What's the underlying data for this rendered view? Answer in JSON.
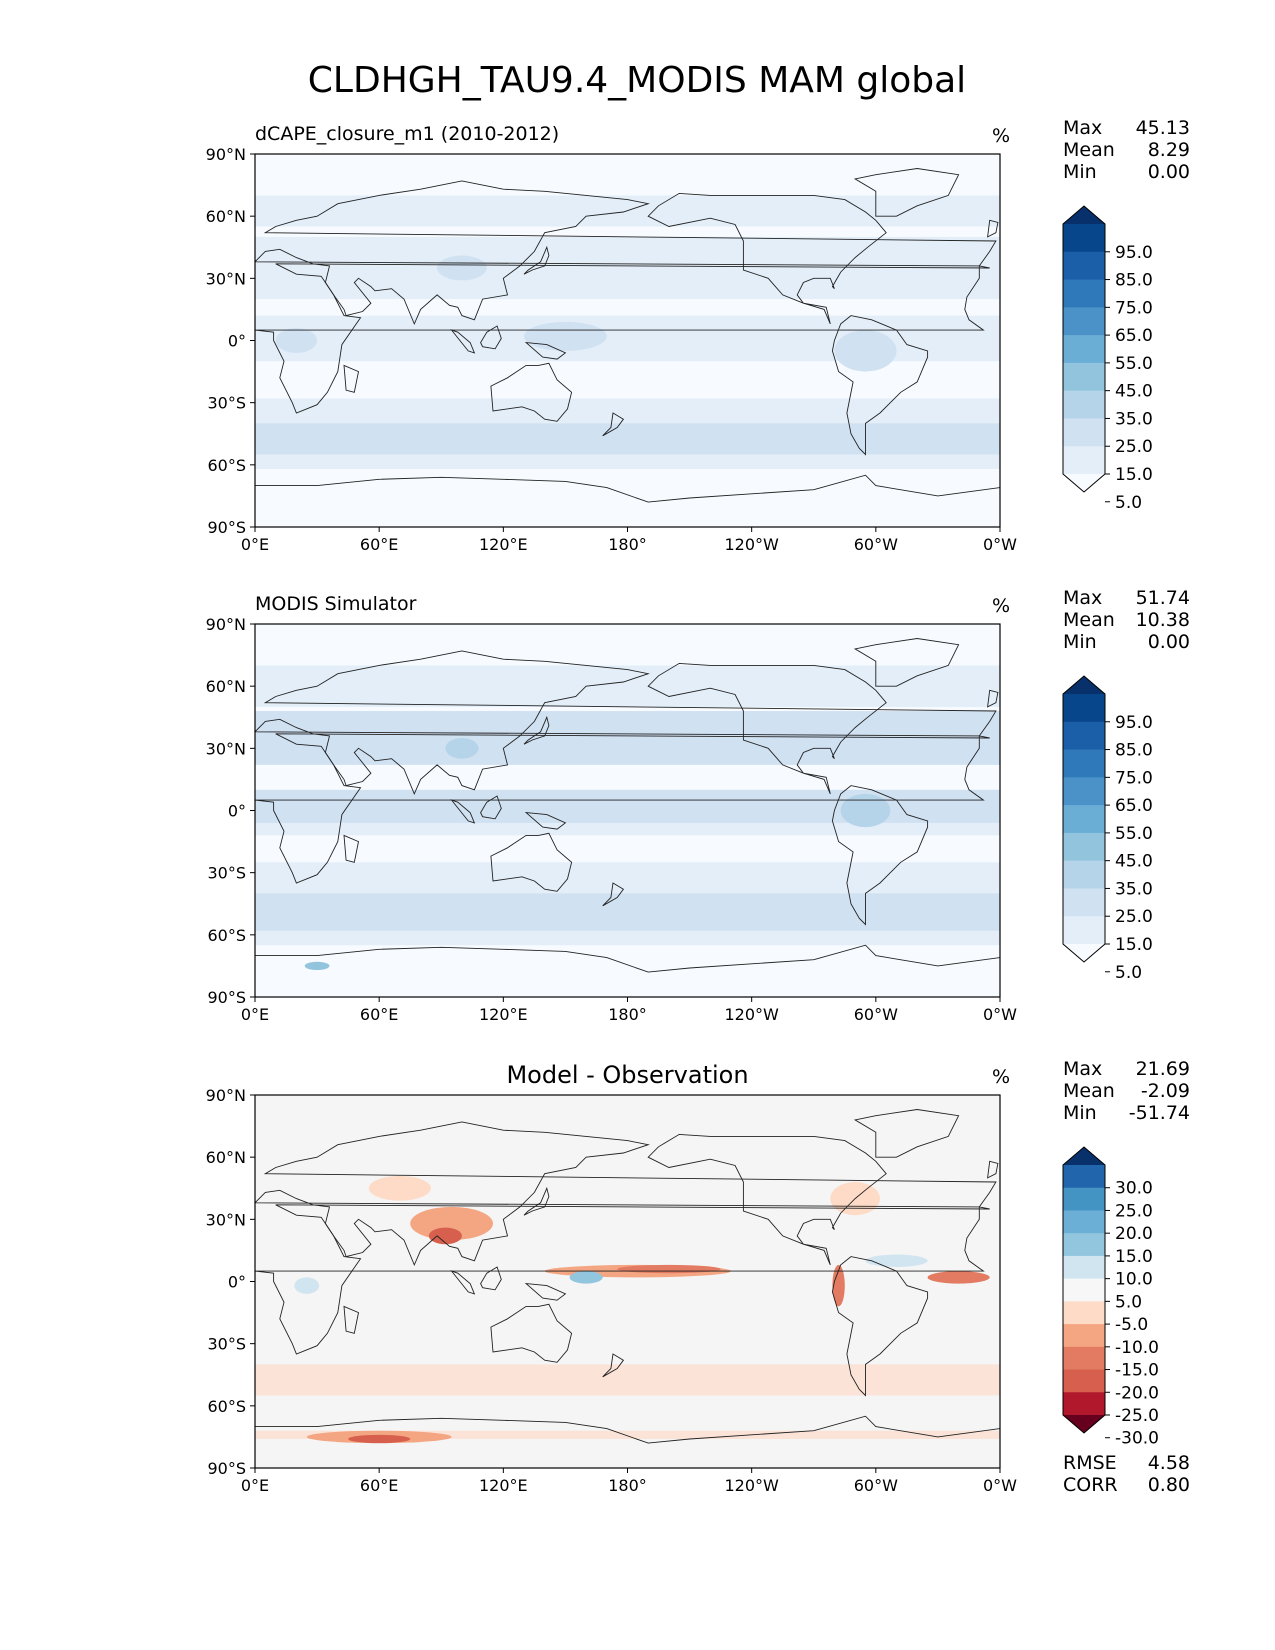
{
  "figure_title": "CLDHGH_TAU9.4_MODIS MAM global",
  "lon_ticks": [
    "0°E",
    "60°E",
    "120°E",
    "180°",
    "120°W",
    "60°W",
    "0°W"
  ],
  "lat_ticks": [
    "90°N",
    "60°N",
    "30°N",
    "0°",
    "30°S",
    "60°S",
    "90°S"
  ],
  "panels": [
    {
      "title_left": "dCAPE_closure_m1 (2010-2012)",
      "title_center": "",
      "units": "%",
      "stats": [
        {
          "label": "Max",
          "value": "45.13"
        },
        {
          "label": "Mean",
          "value": "8.29"
        },
        {
          "label": "Min",
          "value": "0.00"
        }
      ],
      "colorbar": {
        "labels": [
          "95.0",
          "85.0",
          "75.0",
          "65.0",
          "55.0",
          "45.0",
          "35.0",
          "25.0",
          "15.0",
          "5.0"
        ],
        "colors": [
          "#08306b",
          "#08468c",
          "#1a5fa8",
          "#2f78b9",
          "#4a92c7",
          "#6aaed6",
          "#92c4de",
          "#b5d4e9",
          "#d0e1f2",
          "#e3eef9",
          "#f7fbff"
        ]
      },
      "map": {
        "background": "#f7fbff",
        "bands": [
          {
            "lat_range": [
              55,
              70
            ],
            "color": "#e3eef9"
          },
          {
            "lat_range": [
              20,
              50
            ],
            "color": "#e3eef9"
          },
          {
            "lat_range": [
              -10,
              12
            ],
            "color": "#e3eef9"
          },
          {
            "lat_range": [
              -62,
              -28
            ],
            "color": "#e3eef9"
          },
          {
            "lat_range": [
              -55,
              -40
            ],
            "color": "#d0e1f2"
          }
        ],
        "blobs": [
          {
            "lon": 150,
            "lat": 2,
            "rlon": 20,
            "rlat": 7,
            "color": "#d0e1f2"
          },
          {
            "lon": 295,
            "lat": -5,
            "rlon": 15,
            "rlat": 10,
            "color": "#d0e1f2"
          },
          {
            "lon": 20,
            "lat": 0,
            "rlon": 10,
            "rlat": 6,
            "color": "#d0e1f2"
          },
          {
            "lon": 100,
            "lat": 35,
            "rlon": 12,
            "rlat": 6,
            "color": "#d0e1f2"
          }
        ]
      }
    },
    {
      "title_left": "MODIS Simulator",
      "title_center": "",
      "units": "%",
      "stats": [
        {
          "label": "Max",
          "value": "51.74"
        },
        {
          "label": "Mean",
          "value": "10.38"
        },
        {
          "label": "Min",
          "value": "0.00"
        }
      ],
      "colorbar": {
        "labels": [
          "95.0",
          "85.0",
          "75.0",
          "65.0",
          "55.0",
          "45.0",
          "35.0",
          "25.0",
          "15.0",
          "5.0"
        ],
        "colors": [
          "#08306b",
          "#08468c",
          "#1a5fa8",
          "#2f78b9",
          "#4a92c7",
          "#6aaed6",
          "#92c4de",
          "#b5d4e9",
          "#d0e1f2",
          "#e3eef9",
          "#f7fbff"
        ]
      },
      "map": {
        "background": "#f7fbff",
        "bands": [
          {
            "lat_range": [
              50,
              70
            ],
            "color": "#e3eef9"
          },
          {
            "lat_range": [
              22,
              48
            ],
            "color": "#d0e1f2"
          },
          {
            "lat_range": [
              -8,
              10
            ],
            "color": "#d0e1f2"
          },
          {
            "lat_range": [
              -12,
              -6
            ],
            "color": "#e3eef9"
          },
          {
            "lat_range": [
              -65,
              -25
            ],
            "color": "#e3eef9"
          },
          {
            "lat_range": [
              -58,
              -40
            ],
            "color": "#d0e1f2"
          }
        ],
        "blobs": [
          {
            "lon": 100,
            "lat": 30,
            "rlon": 8,
            "rlat": 5,
            "color": "#b5d4e9"
          },
          {
            "lon": 295,
            "lat": 0,
            "rlon": 12,
            "rlat": 8,
            "color": "#b5d4e9"
          },
          {
            "lon": 30,
            "lat": -75,
            "rlon": 6,
            "rlat": 2,
            "color": "#92c4de"
          }
        ]
      }
    },
    {
      "title_left": "",
      "title_center": "Model - Observation",
      "units": "%",
      "stats": [
        {
          "label": "Max",
          "value": "21.69"
        },
        {
          "label": "Mean",
          "value": "-2.09"
        },
        {
          "label": "Min",
          "value": "-51.74"
        }
      ],
      "colorbar": {
        "labels": [
          "30.0",
          "25.0",
          "20.0",
          "15.0",
          "10.0",
          "5.0",
          "-5.0",
          "-10.0",
          "-15.0",
          "-20.0",
          "-25.0",
          "-30.0"
        ],
        "colors": [
          "#08306b",
          "#2166ac",
          "#4393c3",
          "#6baed6",
          "#92c5de",
          "#d1e5f0",
          "#f7f7f7",
          "#fddbc7",
          "#f4a582",
          "#e27b62",
          "#d6604d",
          "#b2182b",
          "#67001f"
        ]
      },
      "bottom_stats": [
        {
          "label": "RMSE",
          "value": "4.58"
        },
        {
          "label": "CORR",
          "value": "0.80"
        }
      ],
      "map": {
        "background": "#f5f5f5",
        "bands": [
          {
            "lat_range": [
              -55,
              -40
            ],
            "color": "#fbe3d8"
          },
          {
            "lat_range": [
              -76,
              -72
            ],
            "color": "#fbe3d8"
          }
        ],
        "blobs": [
          {
            "lon": 95,
            "lat": 28,
            "rlon": 20,
            "rlat": 8,
            "color": "#f4a582"
          },
          {
            "lon": 92,
            "lat": 22,
            "rlon": 8,
            "rlat": 4,
            "color": "#d6604d"
          },
          {
            "lon": 185,
            "lat": 5,
            "rlon": 45,
            "rlat": 3,
            "color": "#f4a582"
          },
          {
            "lon": 200,
            "lat": 6,
            "rlon": 25,
            "rlat": 2,
            "color": "#e27b62"
          },
          {
            "lon": 340,
            "lat": 2,
            "rlon": 15,
            "rlat": 3,
            "color": "#e27b62"
          },
          {
            "lon": 282,
            "lat": -2,
            "rlon": 3,
            "rlat": 10,
            "color": "#e27b62"
          },
          {
            "lon": 70,
            "lat": 45,
            "rlon": 15,
            "rlat": 6,
            "color": "#fddbc7"
          },
          {
            "lon": 290,
            "lat": 40,
            "rlon": 12,
            "rlat": 8,
            "color": "#fddbc7"
          },
          {
            "lon": 25,
            "lat": -2,
            "rlon": 6,
            "rlat": 4,
            "color": "#d1e5f0"
          },
          {
            "lon": 310,
            "lat": 10,
            "rlon": 15,
            "rlat": 3,
            "color": "#d1e5f0"
          },
          {
            "lon": 160,
            "lat": 2,
            "rlon": 8,
            "rlat": 3,
            "color": "#92c5de"
          },
          {
            "lon": 60,
            "lat": -75,
            "rlon": 35,
            "rlat": 3,
            "color": "#f4a582"
          },
          {
            "lon": 60,
            "lat": -76,
            "rlon": 15,
            "rlat": 2,
            "color": "#d6604d"
          }
        ]
      }
    }
  ]
}
